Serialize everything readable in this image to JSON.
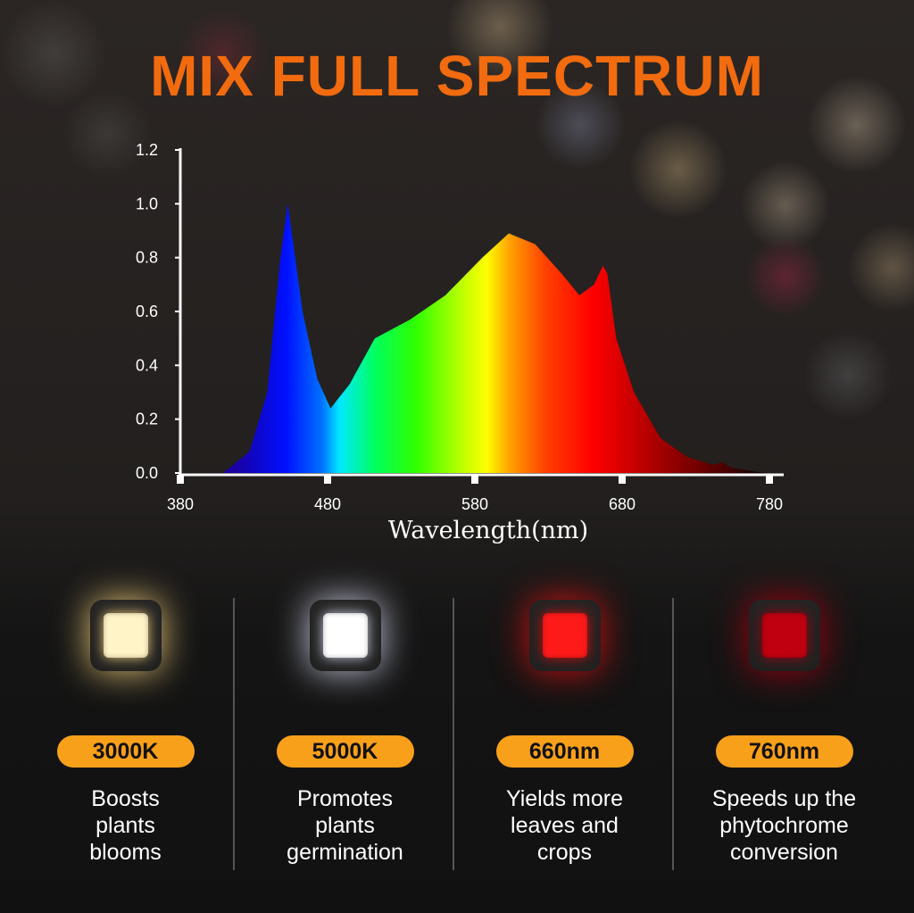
{
  "title": "MIX FULL SPECTRUM",
  "chart_data": {
    "type": "area",
    "title": "",
    "xlabel": "Wavelength(nm)",
    "ylabel": "",
    "xlim": [
      380,
      780
    ],
    "ylim": [
      0,
      1.2
    ],
    "x_ticks": [
      "380",
      "480",
      "580",
      "680",
      "780"
    ],
    "y_ticks": [
      "0.0",
      "0.2",
      "0.4",
      "0.6",
      "0.8",
      "1.0",
      "1.2"
    ],
    "fill": "visible-spectrum gradient",
    "x": [
      380,
      409,
      427,
      439,
      448,
      453,
      463,
      473,
      482,
      495,
      512,
      536,
      560,
      585,
      603,
      621,
      639,
      651,
      661,
      667,
      670,
      676,
      688,
      706,
      724,
      742,
      748,
      754,
      773,
      780
    ],
    "y": [
      0,
      0,
      0.08,
      0.3,
      0.8,
      1.0,
      0.6,
      0.35,
      0.24,
      0.33,
      0.5,
      0.57,
      0.66,
      0.8,
      0.89,
      0.85,
      0.74,
      0.66,
      0.7,
      0.77,
      0.74,
      0.5,
      0.3,
      0.13,
      0.06,
      0.03,
      0.04,
      0.02,
      0.003,
      0
    ]
  },
  "cards": [
    {
      "badge": "3000K",
      "desc": [
        "Boosts",
        "plants",
        "blooms"
      ],
      "color": "#fff3c8",
      "glow": "#e8c878"
    },
    {
      "badge": "5000K",
      "desc": [
        "Promotes",
        "plants",
        "germination"
      ],
      "color": "#ffffff",
      "glow": "#c8cce0"
    },
    {
      "badge": "660nm",
      "desc": [
        "Yields more",
        "leaves and",
        "crops"
      ],
      "color": "#ff1a1a",
      "glow": "#d01010"
    },
    {
      "badge": "760nm",
      "desc": [
        "Speeds up the",
        "phytochrome",
        "conversion"
      ],
      "color": "#c00010",
      "glow": "#a00010"
    }
  ]
}
